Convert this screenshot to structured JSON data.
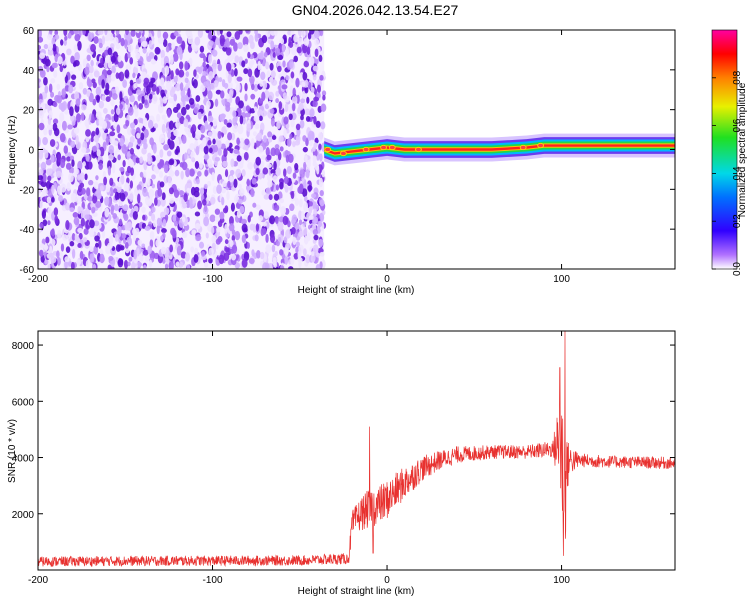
{
  "title": "GN04.2026.042.13.54.E27",
  "colors": {
    "snr_line": "#e8312f",
    "axis": "#000000"
  },
  "chart_data": [
    {
      "type": "heatmap",
      "name": "spectrogram",
      "xlabel": "Height of straight line (km)",
      "ylabel": "Frequency (Hz)",
      "xlim": [
        -200,
        165
      ],
      "ylim": [
        -60,
        60
      ],
      "xticks": [
        -200,
        -100,
        0,
        100
      ],
      "xtick_labels": [
        "-200",
        "-100",
        "0",
        "100"
      ],
      "yticks": [
        -60,
        -40,
        -20,
        0,
        20,
        40,
        60
      ],
      "ytick_labels": [
        "-60",
        "-40",
        "-20",
        "0",
        "20",
        "40",
        "60"
      ],
      "noise_region_x": [
        -200,
        -36
      ],
      "signal_start_x": -36,
      "signal_frequency_hz": [
        [
          -36,
          0
        ],
        [
          -30,
          -2
        ],
        [
          -20,
          -1
        ],
        [
          -10,
          0
        ],
        [
          0,
          1
        ],
        [
          10,
          0
        ],
        [
          30,
          0
        ],
        [
          60,
          0
        ],
        [
          80,
          1
        ],
        [
          90,
          2
        ],
        [
          100,
          2
        ],
        [
          130,
          2
        ],
        [
          165,
          2
        ]
      ],
      "colorbar": {
        "label": "Normalized spectral amplitude",
        "range": [
          0,
          1
        ],
        "ticks": [
          0.0,
          0.2,
          0.4,
          0.6,
          0.8
        ],
        "tick_labels": [
          "0.0",
          "0.2",
          "0.4",
          "0.6",
          "0.8"
        ]
      }
    },
    {
      "type": "line",
      "name": "snr",
      "xlabel": "Height of straight line (km)",
      "ylabel": "SNR (10 * v/v)",
      "xlim": [
        -200,
        165
      ],
      "ylim": [
        0,
        8500
      ],
      "xticks": [
        -200,
        -100,
        0,
        100
      ],
      "xtick_labels": [
        "-200",
        "-100",
        "0",
        "100"
      ],
      "yticks": [
        2000,
        4000,
        6000,
        8000
      ],
      "ytick_labels": [
        "2000",
        "4000",
        "6000",
        "8000"
      ],
      "envelope": {
        "x": [
          -200,
          -150,
          -100,
          -50,
          -22,
          -20,
          -15,
          -10,
          -5,
          0,
          5,
          10,
          20,
          30,
          40,
          60,
          80,
          95,
          98,
          100,
          102,
          104,
          110,
          130,
          165
        ],
        "y": [
          300,
          320,
          330,
          340,
          400,
          1600,
          2000,
          2200,
          2300,
          2500,
          2800,
          3100,
          3600,
          3900,
          4100,
          4200,
          4200,
          4300,
          4500,
          4000,
          3200,
          3900,
          3900,
          3850,
          3800
        ],
        "amp": [
          180,
          180,
          180,
          180,
          200,
          500,
          600,
          700,
          700,
          700,
          650,
          600,
          450,
          350,
          300,
          250,
          250,
          300,
          1400,
          2400,
          2600,
          600,
          250,
          220,
          220
        ]
      },
      "spikes": [
        {
          "x": -10,
          "y": 5100
        },
        {
          "x": 99,
          "y": 7200
        },
        {
          "x": 102,
          "y": 8500
        },
        {
          "x": 101,
          "y": 500
        },
        {
          "x": -8,
          "y": 600
        }
      ]
    }
  ]
}
